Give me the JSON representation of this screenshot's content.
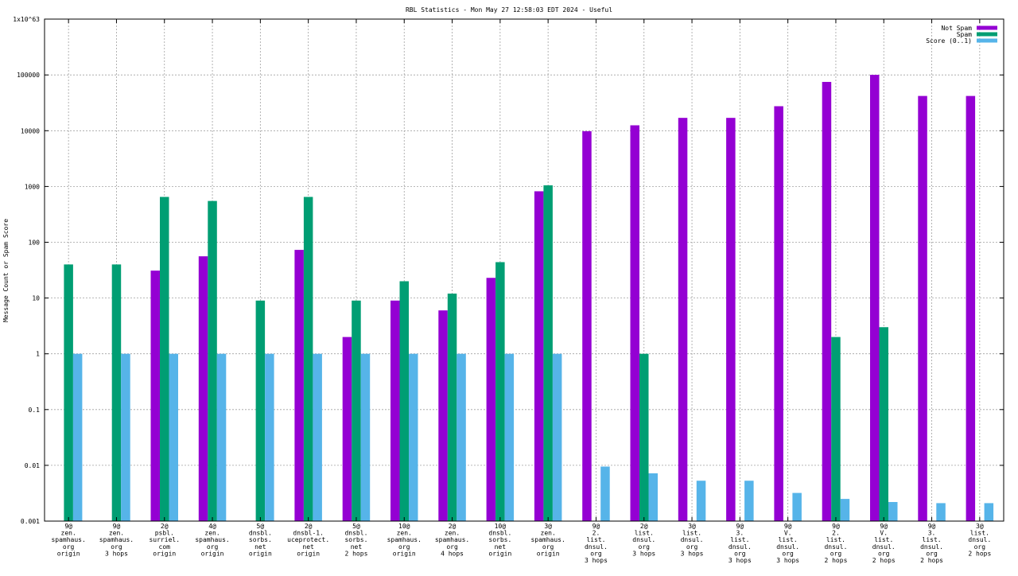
{
  "chart_data": {
    "type": "bar",
    "title": "RBL Statistics - Mon May 27 12:58:03 EDT 2024 - Useful",
    "ylabel": "Message Count or Spam Score",
    "xlabel": "",
    "y_scale": "log",
    "ylim": [
      0.001,
      1e+63
    ],
    "grid": true,
    "legend_position": "top-right",
    "y_ticks": [
      {
        "value": 0.001,
        "label": "0.001"
      },
      {
        "value": 0.01,
        "label": "0.01"
      },
      {
        "value": 0.1,
        "label": "0.1"
      },
      {
        "value": 1,
        "label": "1"
      },
      {
        "value": 10,
        "label": "10"
      },
      {
        "value": 100,
        "label": "100"
      },
      {
        "value": 1000,
        "label": "1000"
      },
      {
        "value": 10000,
        "label": "10000"
      },
      {
        "value": 100000,
        "label": "100000"
      },
      {
        "value": 1e+63,
        "label": "1x10^63"
      }
    ],
    "categories": [
      [
        "9@",
        "zen.",
        "spamhaus.",
        "org",
        "origin"
      ],
      [
        "9@",
        "zen.",
        "spamhaus.",
        "org",
        "3 hops"
      ],
      [
        "2@",
        "psbl.",
        "surriel.",
        "com",
        "origin"
      ],
      [
        "4@",
        "zen.",
        "spamhaus.",
        "org",
        "origin"
      ],
      [
        "5@",
        "dnsbl.",
        "sorbs.",
        "net",
        "origin"
      ],
      [
        "2@",
        "dnsbl-1.",
        "uceprotect.",
        "net",
        "origin"
      ],
      [
        "5@",
        "dnsbl.",
        "sorbs.",
        "net",
        "2 hops"
      ],
      [
        "10@",
        "zen.",
        "spamhaus.",
        "org",
        "origin"
      ],
      [
        "2@",
        "zen.",
        "spamhaus.",
        "org",
        "4 hops"
      ],
      [
        "10@",
        "dnsbl.",
        "sorbs.",
        "net",
        "origin"
      ],
      [
        "3@",
        "zen.",
        "spamhaus.",
        "org",
        "origin"
      ],
      [
        "9@",
        "2.",
        "list.",
        "dnsul.",
        "org",
        "3 hops"
      ],
      [
        "2@",
        "list.",
        "dnsul.",
        "org",
        "3 hops"
      ],
      [
        "3@",
        "list.",
        "dnsul.",
        "org",
        "3 hops"
      ],
      [
        "9@",
        "3.",
        "list.",
        "dnsul.",
        "org",
        "3 hops"
      ],
      [
        "9@",
        "V.",
        "list.",
        "dnsul.",
        "org",
        "3 hops"
      ],
      [
        "9@",
        "2.",
        "list.",
        "dnsul.",
        "org",
        "2 hops"
      ],
      [
        "9@",
        "V.",
        "list.",
        "dnsul.",
        "org",
        "2 hops"
      ],
      [
        "9@",
        "3.",
        "list.",
        "dnsul.",
        "org",
        "2 hops"
      ],
      [
        "3@",
        "list.",
        "dnsul.",
        "org",
        "2 hops"
      ]
    ],
    "series": [
      {
        "name": "Not Spam",
        "color": "#9400d3",
        "values": [
          null,
          null,
          31,
          56,
          null,
          73,
          2,
          9,
          6,
          23,
          820,
          9800,
          12500,
          17000,
          17000,
          27500,
          75000,
          125000,
          42000,
          42000
        ]
      },
      {
        "name": "Spam",
        "color": "#009e73",
        "values": [
          40,
          40,
          650,
          550,
          9,
          650,
          9,
          20,
          12,
          44,
          1050,
          null,
          1,
          null,
          null,
          null,
          2,
          3,
          null,
          null
        ]
      },
      {
        "name": "Score (0..1)",
        "color": "#56b4e9",
        "values": [
          1,
          1,
          1,
          1,
          1,
          1,
          1,
          1,
          1,
          1,
          1,
          0.0095,
          0.0072,
          0.0053,
          0.0053,
          0.0032,
          0.0025,
          0.0022,
          0.0021,
          0.0021
        ]
      }
    ]
  }
}
